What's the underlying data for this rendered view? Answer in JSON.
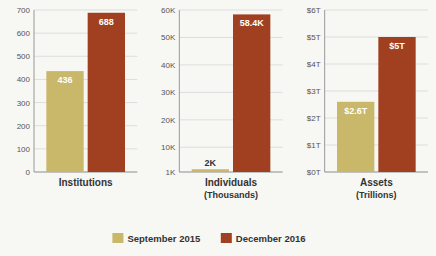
{
  "chart_data": [
    {
      "type": "bar",
      "categories": [
        "Institutions"
      ],
      "series": [
        {
          "name": "September 2015",
          "color": "#C9B76A",
          "values": [
            436
          ]
        },
        {
          "name": "December 2016",
          "color": "#A04020",
          "values": [
            688
          ]
        }
      ],
      "ylim": [
        0,
        700
      ],
      "yticks": [
        0,
        100,
        200,
        300,
        400,
        500,
        600,
        700
      ],
      "grid": true,
      "data_labels": true
    },
    {
      "type": "bar",
      "categories": [
        "Individuals"
      ],
      "subtitle": "(Thousands)",
      "series": [
        {
          "name": "September 2015",
          "color": "#C9B76A",
          "values": [
            2000
          ],
          "value_labels": [
            "2K"
          ]
        },
        {
          "name": "December 2016",
          "color": "#A04020",
          "values": [
            58400
          ],
          "value_labels": [
            "58.4K"
          ]
        }
      ],
      "ylim": [
        1000,
        60000
      ],
      "yticks": [
        {
          "value": 1000,
          "label": "1K"
        },
        {
          "value": 10000,
          "label": "10K"
        },
        {
          "value": 20000,
          "label": "20K"
        },
        {
          "value": 30000,
          "label": "30K"
        },
        {
          "value": 40000,
          "label": "40K"
        },
        {
          "value": 50000,
          "label": "50K"
        },
        {
          "value": 60000,
          "label": "60K"
        }
      ],
      "grid": true,
      "data_labels": true
    },
    {
      "type": "bar",
      "categories": [
        "Assets"
      ],
      "subtitle": "(Trillions)",
      "series": [
        {
          "name": "September 2015",
          "color": "#C9B76A",
          "values": [
            2.6
          ],
          "value_labels": [
            "$2.6T"
          ]
        },
        {
          "name": "December 2016",
          "color": "#A04020",
          "values": [
            5.0
          ],
          "value_labels": [
            "$5T"
          ]
        }
      ],
      "ylim": [
        0,
        6
      ],
      "yticks": [
        {
          "value": 0,
          "label": "$0T"
        },
        {
          "value": 1,
          "label": "$1T"
        },
        {
          "value": 2,
          "label": "$2T"
        },
        {
          "value": 3,
          "label": "$3T"
        },
        {
          "value": 4,
          "label": "$4T"
        },
        {
          "value": 5,
          "label": "$5T"
        },
        {
          "value": 6,
          "label": "$6T"
        }
      ],
      "grid": true,
      "data_labels": true
    }
  ]
}
